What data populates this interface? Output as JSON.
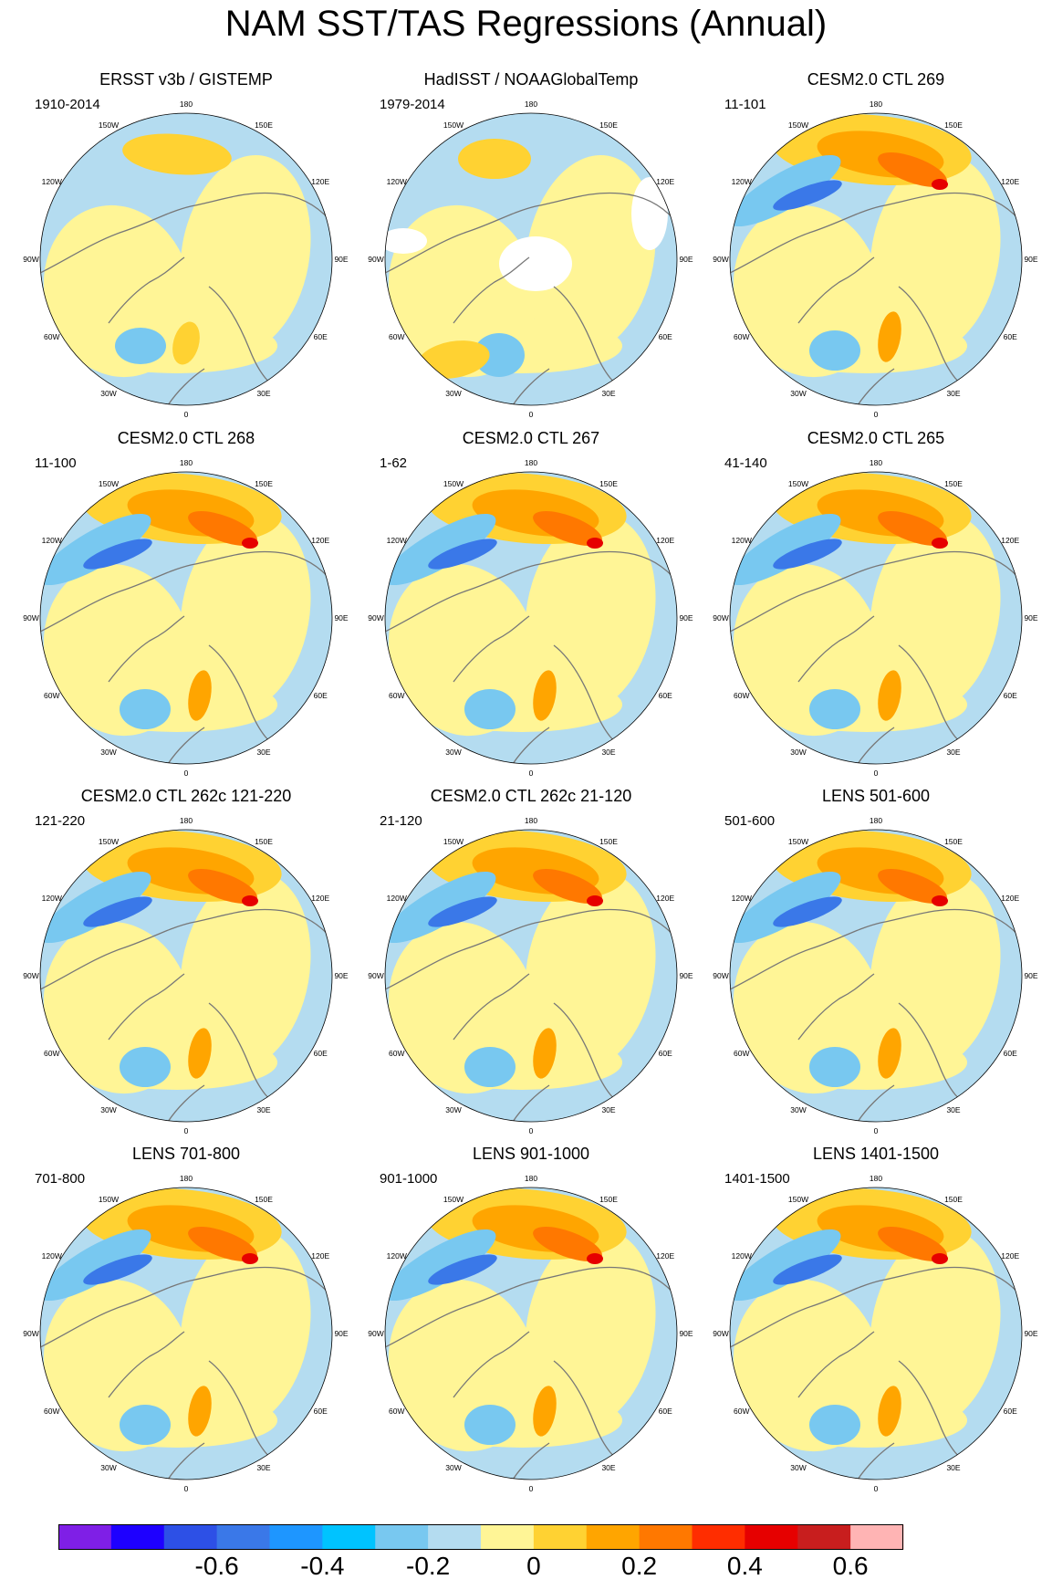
{
  "title": "NAM SST/TAS Regressions (Annual)",
  "panels": [
    {
      "title": "ERSST v3b / GISTEMP",
      "period": "1910-2014",
      "variant": "obs1"
    },
    {
      "title": "HadISST / NOAAGlobalTemp",
      "period": "1979-2014",
      "variant": "obs2"
    },
    {
      "title": "CESM2.0 CTL 269",
      "period": "11-101",
      "variant": "model"
    },
    {
      "title": "CESM2.0 CTL 268",
      "period": "11-100",
      "variant": "model"
    },
    {
      "title": "CESM2.0 CTL 267",
      "period": "1-62",
      "variant": "model"
    },
    {
      "title": "CESM2.0 CTL 265",
      "period": "41-140",
      "variant": "model"
    },
    {
      "title": "CESM2.0 CTL 262c 121-220",
      "period": "121-220",
      "variant": "model"
    },
    {
      "title": "CESM2.0 CTL 262c 21-120",
      "period": "21-120",
      "variant": "model"
    },
    {
      "title": "LENS 501-600",
      "period": "501-600",
      "variant": "model"
    },
    {
      "title": "LENS 701-800",
      "period": "701-800",
      "variant": "model"
    },
    {
      "title": "LENS 901-1000",
      "period": "901-1000",
      "variant": "model"
    },
    {
      "title": "LENS 1401-1500",
      "period": "1401-1500",
      "variant": "model"
    }
  ],
  "longitude_labels": [
    "180",
    "150E",
    "120E",
    "90E",
    "60E",
    "30E",
    "0",
    "30W",
    "60W",
    "90W",
    "120W",
    "150W"
  ],
  "colorbar": {
    "colors": [
      "#7f1fe6",
      "#1e00ff",
      "#2d50e6",
      "#3a78e8",
      "#1e96ff",
      "#00c3ff",
      "#78c8f0",
      "#b4dcf0",
      "#fff596",
      "#ffd232",
      "#ffa500",
      "#ff7800",
      "#ff2d00",
      "#e60000",
      "#c81e1e",
      "#ffb4b4"
    ],
    "tick_labels": [
      "-0.6",
      "-0.4",
      "-0.2",
      "0",
      "0.2",
      "0.4",
      "0.6"
    ]
  },
  "map_colors": {
    "neutral_pos": "#fff596",
    "neutral_neg": "#b4dcf0",
    "pos1": "#ffd232",
    "pos2": "#ffa500",
    "pos3": "#ff7800",
    "pos4": "#e60000",
    "neg1": "#78c8f0",
    "neg2": "#3a78e8",
    "missing": "#ffffff",
    "coast": "#777777"
  }
}
